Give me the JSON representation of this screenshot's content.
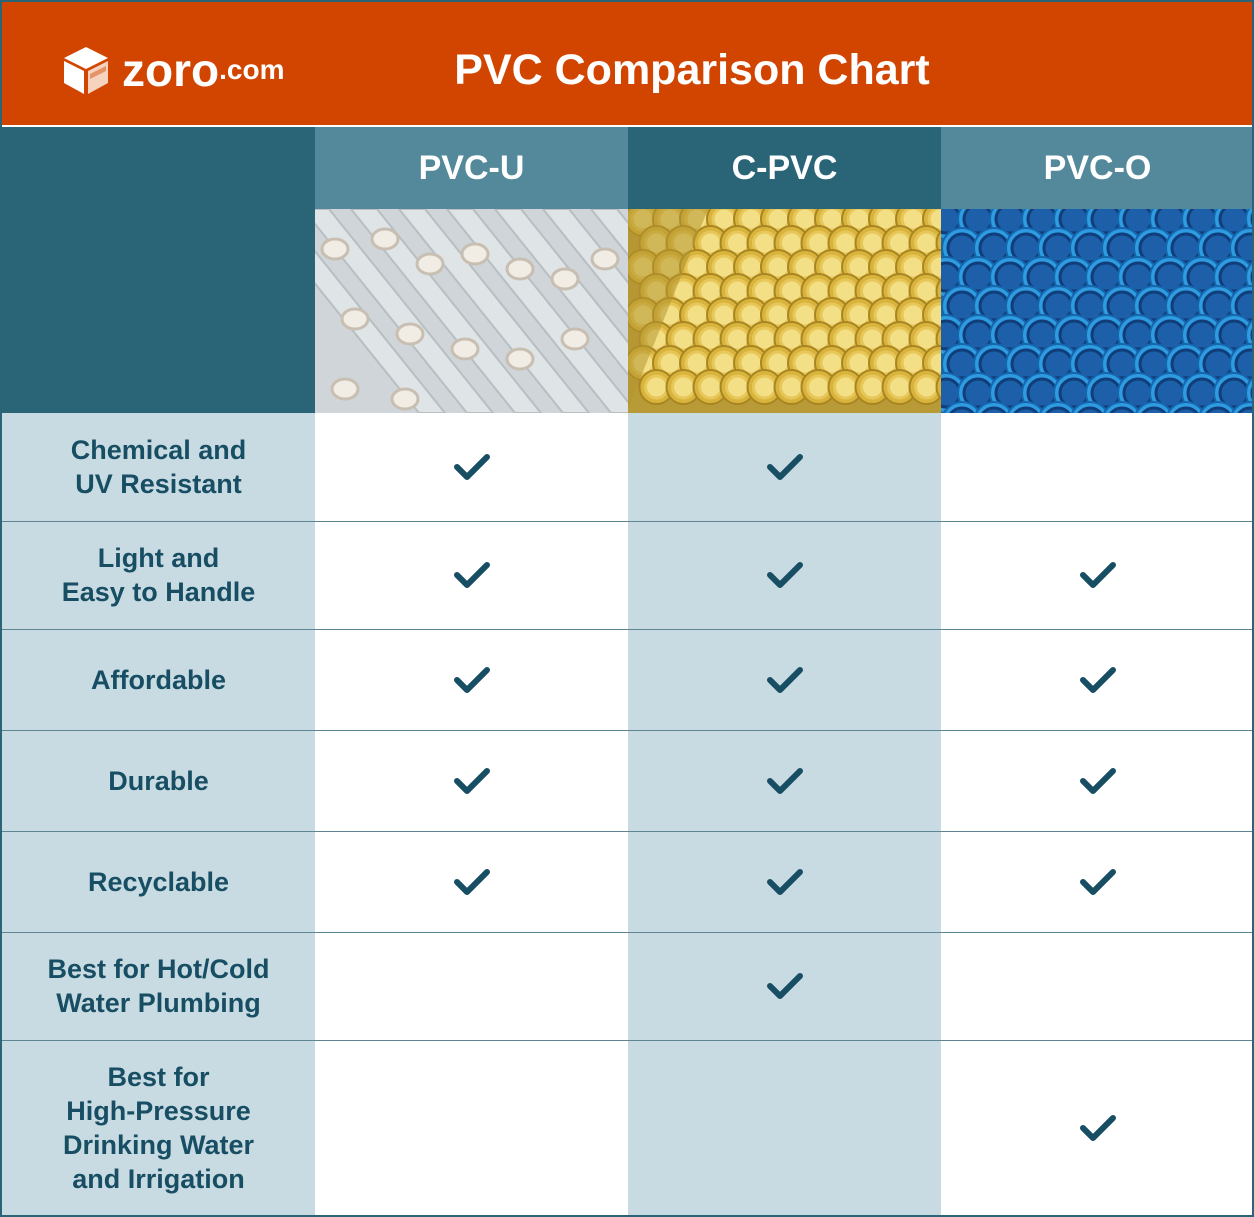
{
  "header": {
    "logo_text": "zoro",
    "logo_suffix": ".com",
    "title": "PVC Comparison Chart"
  },
  "colors": {
    "header_bg": "#d24500",
    "corner_bg": "#2a6577",
    "row_label_bg": "#c9dbe2",
    "label_text": "#174e63",
    "check": "#174e63",
    "col_head_light": "#53899a",
    "col_head_dark": "#2a6577"
  },
  "chart_data": {
    "type": "table",
    "title": "PVC Comparison Chart",
    "columns": [
      {
        "label": "PVC-U",
        "image": "white-pvc-pipes-photo"
      },
      {
        "label": "C-PVC",
        "image": "yellow-cpvc-pipes-photo"
      },
      {
        "label": "PVC-O",
        "image": "blue-pvco-pipes-photo"
      }
    ],
    "rows": [
      {
        "label": "Chemical and\nUV Resistant",
        "values": [
          true,
          true,
          false
        ]
      },
      {
        "label": "Light and\nEasy to Handle",
        "values": [
          true,
          true,
          true
        ]
      },
      {
        "label": "Affordable",
        "values": [
          true,
          true,
          true
        ]
      },
      {
        "label": "Durable",
        "values": [
          true,
          true,
          true
        ]
      },
      {
        "label": "Recyclable",
        "values": [
          true,
          true,
          true
        ]
      },
      {
        "label": "Best for Hot/Cold\nWater Plumbing",
        "values": [
          false,
          true,
          false
        ]
      },
      {
        "label": "Best for\nHigh-Pressure\nDrinking Water\nand Irrigation",
        "values": [
          false,
          false,
          true
        ]
      }
    ]
  }
}
